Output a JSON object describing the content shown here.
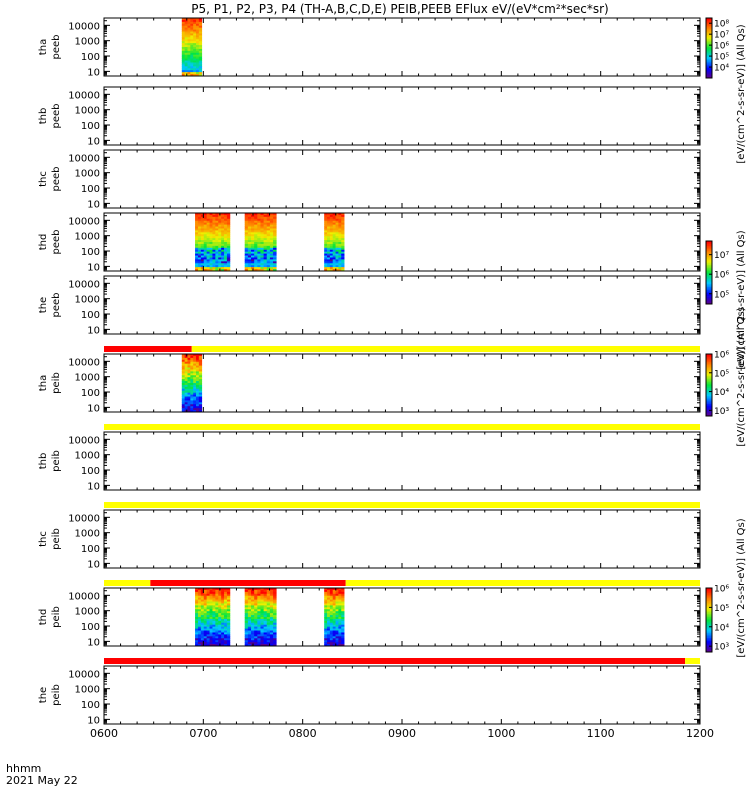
{
  "chart_data": {
    "type": "heatmap",
    "title": "P5, P1, P2, P3, P4 (TH-A,B,C,D,E) PEIB,PEEB EFlux eV/(eV*cm²*sec*sr)",
    "x_axis": {
      "range_hhmm": [
        "0600",
        "1200"
      ],
      "ticks": [
        "0600",
        "0700",
        "0800",
        "0900",
        "1000",
        "1100",
        "1200"
      ],
      "label": "hhmm",
      "date": "2021 May 22"
    },
    "y_axis": {
      "scale": "log",
      "range": [
        5,
        30000
      ],
      "ticks": [
        "10",
        "100",
        "1000",
        "10000"
      ]
    },
    "panels": [
      {
        "probe": "tha",
        "species": "peeb",
        "data_intervals": [
          [
            "0647",
            "0659"
          ]
        ],
        "colorbar": {
          "label": "[eV/(cm^2-s-sr-eV)] (All Qs)",
          "ticks": [
            "10⁴",
            "10⁵",
            "10⁶",
            "10⁷",
            "10⁸"
          ],
          "range": [
            1000,
            300000000
          ]
        }
      },
      {
        "probe": "thb",
        "species": "peeb",
        "data_intervals": []
      },
      {
        "probe": "thc",
        "species": "peeb",
        "data_intervals": []
      },
      {
        "probe": "thd",
        "species": "peeb",
        "data_intervals": [
          [
            "0655",
            "0716"
          ],
          [
            "0725",
            "0744"
          ],
          [
            "0813",
            "0825"
          ]
        ],
        "colorbar": {
          "label": "[eV/(cm^2-s-sr-eV)] (All Qs)",
          "ticks": [
            "10⁵",
            "10⁶",
            "10⁷"
          ],
          "range": [
            30000,
            50000000
          ]
        }
      },
      {
        "probe": "the",
        "species": "peeb",
        "data_intervals": []
      },
      {
        "probe": "tha",
        "species": "peib",
        "data_intervals": [
          [
            "0647",
            "0659"
          ]
        ],
        "colorbar": {
          "label": "[eV/(cm^2-s-sr-eV)] (All Qs)",
          "ticks": [
            "10³",
            "10⁴",
            "10⁵",
            "10⁶"
          ],
          "range": [
            500,
            1000000
          ]
        }
      },
      {
        "probe": "thb",
        "species": "peib",
        "data_intervals": []
      },
      {
        "probe": "thc",
        "species": "peib",
        "data_intervals": []
      },
      {
        "probe": "thd",
        "species": "peib",
        "data_intervals": [
          [
            "0655",
            "0716"
          ],
          [
            "0725",
            "0744"
          ],
          [
            "0813",
            "0825"
          ]
        ],
        "colorbar": {
          "label": "[eV/(cm^2-s-sr-eV)] (All Qs)",
          "ticks": [
            "10³",
            "10⁴",
            "10⁵",
            "10⁶"
          ],
          "range": [
            500,
            1000000
          ]
        }
      },
      {
        "probe": "the",
        "species": "peib",
        "data_intervals": []
      }
    ],
    "mode_bars": [
      {
        "above_panel": 6,
        "segments": [
          {
            "from": "0600",
            "to": "0653",
            "color": "#ff0000"
          },
          {
            "from": "0653",
            "to": "1200",
            "color": "#ffff00"
          }
        ]
      },
      {
        "above_panel": 7,
        "segments": [
          {
            "from": "0600",
            "to": "1200",
            "color": "#ffff00"
          }
        ]
      },
      {
        "above_panel": 8,
        "segments": [
          {
            "from": "0600",
            "to": "1200",
            "color": "#ffff00"
          }
        ]
      },
      {
        "above_panel": 9,
        "segments": [
          {
            "from": "0600",
            "to": "0628",
            "color": "#ffff00"
          },
          {
            "from": "0628",
            "to": "0826",
            "color": "#ff0000"
          },
          {
            "from": "0826",
            "to": "1200",
            "color": "#ffff00"
          }
        ]
      },
      {
        "above_panel": 10,
        "segments": [
          {
            "from": "0600",
            "to": "1151",
            "color": "#ff0000"
          },
          {
            "from": "1151",
            "to": "1200",
            "color": "#ffff00"
          }
        ]
      }
    ]
  }
}
